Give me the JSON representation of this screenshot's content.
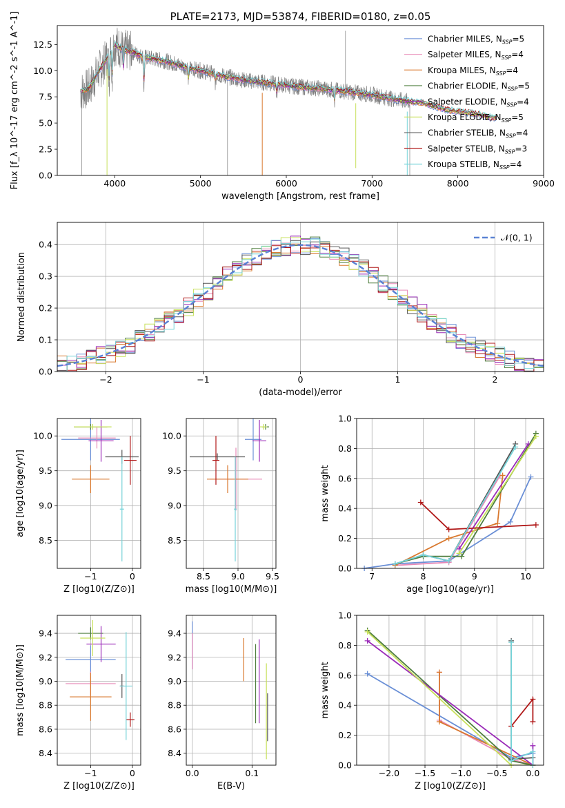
{
  "page_title": "PLATE=2173, MJD=53874, FIBERID=0180, z=0.05",
  "chart_data": [
    {
      "id": "spectrum",
      "type": "line",
      "title": "PLATE=2173, MJD=53874, FIBERID=0180, z=0.05",
      "xlabel": "wavelength [Angstrom, rest frame]",
      "ylabel": "Flux [f_λ 10^-17 erg cm^-2 s^-1 A^-1]",
      "xlim": [
        3330,
        9000
      ],
      "ylim": [
        0,
        14.3
      ],
      "xticks": [
        4000,
        5000,
        6000,
        7000,
        8000,
        9000
      ],
      "yticks": [
        0,
        2.5,
        5.0,
        7.5,
        10.0,
        12.5
      ],
      "grid": false,
      "legend_position": "top-right",
      "legend": [
        "Chabrier MILES, N_SSP=5",
        "Salpeter MILES, N_SSP=4",
        "Kroupa MILES, N_SSP=4",
        "Chabrier ELODIE, N_SSP=5",
        "Salpeter ELODIE, N_SSP=4",
        "Kroupa ELODIE, N_SSP=5",
        "Chabrier STELIB, N_SSP=4",
        "Salpeter STELIB, N_SSP=3",
        "Kroupa STELIB, N_SSP=4"
      ],
      "data_x": [
        3600,
        3700,
        3800,
        3900,
        4000,
        4100,
        4200,
        4300,
        4400,
        4600,
        4800,
        5000,
        5200,
        5500,
        5800,
        6100,
        6400,
        6700,
        7000,
        7300,
        7600,
        7900,
        8200,
        8400
      ],
      "model_y": [
        8.0,
        8.3,
        9.8,
        11.0,
        12.5,
        12.0,
        11.8,
        11.4,
        11.2,
        10.9,
        10.4,
        10.0,
        9.6,
        9.1,
        8.8,
        8.5,
        8.3,
        8.0,
        7.7,
        7.2,
        6.9,
        6.2,
        5.9,
        5.5
      ]
    },
    {
      "id": "residuals",
      "type": "line",
      "xlabel": "(data-model)/error",
      "ylabel": "Normed distribution",
      "xlim": [
        -2.5,
        2.5
      ],
      "ylim": [
        0,
        0.47
      ],
      "xticks": [
        -2,
        -1,
        0,
        1,
        2
      ],
      "yticks": [
        0.0,
        0.1,
        0.2,
        0.3,
        0.4
      ],
      "grid": true,
      "legend_position": "top-right",
      "legend": [
        "𝒩(0, 1)"
      ]
    },
    {
      "id": "age-vs-Z",
      "type": "scatter",
      "xlabel": "Z [log10(Z/Z⊙)]",
      "ylabel": "age  [log10(age/yr)]",
      "xlim": [
        -1.8,
        0.2
      ],
      "ylim": [
        8.1,
        10.25
      ],
      "xticks": [
        -1,
        0
      ],
      "yticks": [
        8.5,
        9.0,
        9.5,
        10.0
      ],
      "grid": true,
      "points": [
        {
          "x": -1.0,
          "y": 9.95,
          "xerr": 0.7,
          "yerr": 0.3
        },
        {
          "x": -0.85,
          "y": 9.97,
          "xerr": 0.45,
          "yerr": 0.15
        },
        {
          "x": -1.0,
          "y": 9.38,
          "xerr": 0.45,
          "yerr": 0.2
        },
        {
          "x": -1.0,
          "y": 10.13,
          "xerr": 0.4,
          "yerr": 0.04
        },
        {
          "x": -0.75,
          "y": 9.93,
          "xerr": 0.3,
          "yerr": 0.3
        },
        {
          "x": -0.95,
          "y": 10.13,
          "xerr": 0.45,
          "yerr": 0.04
        },
        {
          "x": -0.25,
          "y": 9.7,
          "xerr": 0.4,
          "yerr": 0.1
        },
        {
          "x": -0.05,
          "y": 9.65,
          "xerr": 0.15,
          "yerr": 0.35
        },
        {
          "x": -0.25,
          "y": 8.95,
          "xerr": 0.05,
          "yerr": 0.75
        }
      ]
    },
    {
      "id": "age-vs-mass",
      "type": "scatter",
      "xlabel": "mass [log10(M/M⊙)]",
      "ylabel": "",
      "xlim": [
        8.25,
        9.55
      ],
      "ylim": [
        8.1,
        10.25
      ],
      "xticks": [
        8.5,
        9.0,
        9.5
      ],
      "yticks": [
        8.5,
        9.0,
        9.5,
        10.0
      ],
      "grid": true,
      "points": [
        {
          "x": 9.22,
          "y": 9.95,
          "xerr": 0.12,
          "yerr": 0.3
        },
        {
          "x": 8.97,
          "y": 9.38,
          "xerr": 0.38,
          "yerr": 0.45
        },
        {
          "x": 8.85,
          "y": 9.38,
          "xerr": 0.3,
          "yerr": 0.2
        },
        {
          "x": 9.4,
          "y": 10.13,
          "xerr": 0.05,
          "yerr": 0.04
        },
        {
          "x": 9.31,
          "y": 9.93,
          "xerr": 0.1,
          "yerr": 0.3
        },
        {
          "x": 9.37,
          "y": 10.13,
          "xerr": 0.05,
          "yerr": 0.04
        },
        {
          "x": 8.7,
          "y": 9.7,
          "xerr": 0.4,
          "yerr": 0.05
        },
        {
          "x": 8.68,
          "y": 9.65,
          "xerr": 0.05,
          "yerr": 0.35
        },
        {
          "x": 8.96,
          "y": 8.95,
          "xerr": 0.02,
          "yerr": 0.75
        }
      ]
    },
    {
      "id": "weight-vs-age",
      "type": "line",
      "xlabel": "age  [log10(age/yr)]",
      "ylabel": "mass weight",
      "xlim": [
        6.7,
        10.35
      ],
      "ylim": [
        0,
        1.0
      ],
      "xticks": [
        7,
        8,
        9,
        10
      ],
      "yticks": [
        0.0,
        0.2,
        0.4,
        0.6,
        0.8,
        1.0
      ],
      "grid": true,
      "series": [
        {
          "points": [
            [
              6.85,
              0.0
            ],
            [
              7.45,
              0.03
            ],
            [
              8.5,
              0.05
            ],
            [
              9.7,
              0.31
            ],
            [
              10.1,
              0.61
            ]
          ]
        },
        {
          "points": [
            [
              7.45,
              0.02
            ],
            [
              8.5,
              0.04
            ],
            [
              9.5,
              0.62
            ]
          ]
        },
        {
          "points": [
            [
              7.45,
              0.02
            ],
            [
              8.5,
              0.2
            ],
            [
              9.45,
              0.3
            ],
            [
              9.55,
              0.62
            ]
          ]
        },
        {
          "points": [
            [
              7.45,
              0.03
            ],
            [
              8.0,
              0.08
            ],
            [
              8.75,
              0.08
            ],
            [
              10.2,
              0.9
            ]
          ]
        },
        {
          "points": [
            [
              8.7,
              0.13
            ],
            [
              10.05,
              0.83
            ]
          ]
        },
        {
          "points": [
            [
              8.7,
              0.1
            ],
            [
              10.2,
              0.88
            ]
          ]
        },
        {
          "points": [
            [
              7.45,
              0.03
            ],
            [
              8.0,
              0.09
            ],
            [
              8.5,
              0.05
            ],
            [
              9.8,
              0.83
            ]
          ]
        },
        {
          "points": [
            [
              7.95,
              0.44
            ],
            [
              8.5,
              0.26
            ],
            [
              10.2,
              0.29
            ]
          ]
        },
        {
          "points": [
            [
              7.45,
              0.03
            ],
            [
              8.0,
              0.09
            ],
            [
              8.5,
              0.05
            ],
            [
              9.8,
              0.81
            ]
          ]
        }
      ]
    },
    {
      "id": "mass-vs-Z",
      "type": "scatter",
      "xlabel": "Z [log10(Z/Z⊙)]",
      "ylabel": "mass [log10(M/M⊙)]",
      "xlim": [
        -1.8,
        0.2
      ],
      "ylim": [
        8.3,
        9.55
      ],
      "xticks": [
        -1,
        0
      ],
      "yticks": [
        8.4,
        8.6,
        8.8,
        9.0,
        9.2,
        9.4
      ],
      "grid": true,
      "points": [
        {
          "x": -1.0,
          "y": 9.18,
          "xerr": 0.6,
          "yerr": 0.12
        },
        {
          "x": -1.0,
          "y": 8.98,
          "xerr": 0.6,
          "yerr": 0.1
        },
        {
          "x": -1.0,
          "y": 8.87,
          "xerr": 0.5,
          "yerr": 0.2
        },
        {
          "x": -1.0,
          "y": 9.4,
          "xerr": 0.3,
          "yerr": 0.05
        },
        {
          "x": -0.75,
          "y": 9.31,
          "xerr": 0.35,
          "yerr": 0.15
        },
        {
          "x": -0.95,
          "y": 9.36,
          "xerr": 0.3,
          "yerr": 0.15
        },
        {
          "x": -0.25,
          "y": 8.96,
          "xerr": 0.05,
          "yerr": 0.1
        },
        {
          "x": -0.05,
          "y": 8.68,
          "xerr": 0.1,
          "yerr": 0.06
        },
        {
          "x": -0.15,
          "y": 8.96,
          "xerr": 0.15,
          "yerr": 0.45
        }
      ]
    },
    {
      "id": "mass-vs-ebv",
      "type": "scatter",
      "xlabel": "E(B-V)",
      "ylabel": "",
      "xlim": [
        -0.01,
        0.14
      ],
      "ylim": [
        8.3,
        9.55
      ],
      "xticks": [
        0.0,
        0.1
      ],
      "yticks": [
        8.4,
        8.6,
        8.8,
        9.0,
        9.2,
        9.4
      ],
      "grid": true,
      "points": [
        {
          "x": 0.0,
          "y": 9.3,
          "xerr": 0.0,
          "yerr": 0.2
        },
        {
          "x": 0.0,
          "y": 9.25,
          "xerr": 0.0,
          "yerr": 0.15
        },
        {
          "x": 0.086,
          "y": 9.18,
          "xerr": 0.0,
          "yerr": 0.18
        },
        {
          "x": 0.106,
          "y": 8.98,
          "xerr": 0.0,
          "yerr": 0.33
        },
        {
          "x": 0.112,
          "y": 9.0,
          "xerr": 0.0,
          "yerr": 0.35
        },
        {
          "x": 0.124,
          "y": 8.75,
          "xerr": 0.0,
          "yerr": 0.4
        },
        {
          "x": 0.126,
          "y": 8.7,
          "xerr": 0.0,
          "yerr": 0.2
        }
      ]
    },
    {
      "id": "weight-vs-Z",
      "type": "line",
      "xlabel": "Z [log10(Z/Z⊙)]",
      "ylabel": "mass weight",
      "xlim": [
        -2.45,
        0.15
      ],
      "ylim": [
        0,
        1.0
      ],
      "xticks": [
        -2.0,
        -1.5,
        -1.0,
        -0.5,
        0.0
      ],
      "yticks": [
        0.0,
        0.2,
        0.4,
        0.6,
        0.8,
        1.0
      ],
      "grid": true,
      "series": [
        {
          "points": [
            [
              -2.3,
              0.61
            ],
            [
              -0.3,
              0.05
            ],
            [
              0.0,
              0.08
            ]
          ]
        },
        {
          "points": [
            [
              -1.3,
              0.62
            ],
            [
              -1.3,
              0.3
            ],
            [
              -0.3,
              0.04
            ],
            [
              0.0,
              0.0
            ]
          ]
        },
        {
          "points": [
            [
              -1.3,
              0.62
            ],
            [
              -1.3,
              0.29
            ],
            [
              0.0,
              0.0
            ]
          ]
        },
        {
          "points": [
            [
              -2.3,
              0.9
            ],
            [
              -0.3,
              0.03
            ],
            [
              0.0,
              0.0
            ]
          ]
        },
        {
          "points": [
            [
              -2.3,
              0.83
            ],
            [
              0.0,
              0.0
            ],
            [
              0.0,
              0.13
            ]
          ]
        },
        {
          "points": [
            [
              -2.3,
              0.89
            ],
            [
              -0.3,
              0.0
            ],
            [
              0.0,
              0.0
            ]
          ]
        },
        {
          "points": [
            [
              -0.3,
              0.83
            ],
            [
              -0.3,
              0.04
            ],
            [
              0.0,
              0.05
            ]
          ]
        },
        {
          "points": [
            [
              -0.3,
              0.26
            ],
            [
              0.0,
              0.44
            ],
            [
              0.0,
              0.29
            ]
          ]
        },
        {
          "points": [
            [
              -0.3,
              0.82
            ],
            [
              -0.3,
              0.03
            ],
            [
              0.0,
              0.09
            ],
            [
              0.0,
              0.0
            ]
          ]
        }
      ]
    }
  ],
  "series_colors": [
    "#6a8fd6",
    "#e889b7",
    "#d9792f",
    "#4e7e3e",
    "#9a2ab8",
    "#c7e05a",
    "#555555",
    "#b01818",
    "#75d3d8"
  ]
}
